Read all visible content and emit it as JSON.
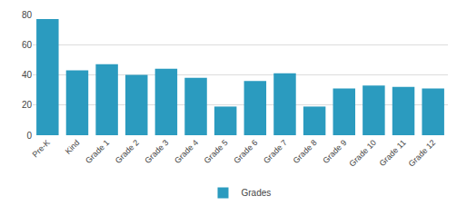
{
  "chart_data": {
    "type": "bar",
    "categories": [
      "Pre-K",
      "Kind",
      "Grade 1",
      "Grade 2",
      "Grade 3",
      "Grade 4",
      "Grade 5",
      "Grade 6",
      "Grade 7",
      "Grade 8",
      "Grade 9",
      "Grade 10",
      "Grade 11",
      "Grade 12"
    ],
    "series": [
      {
        "name": "Grades",
        "color": "#2b9bbf",
        "values": [
          77,
          43,
          47,
          40,
          44,
          38,
          19,
          36,
          41,
          19,
          31,
          33,
          32,
          31
        ]
      }
    ],
    "ylim": [
      0,
      80
    ],
    "yticks": [
      0,
      20,
      40,
      60,
      80
    ],
    "grid": true,
    "legend": "bottom"
  }
}
